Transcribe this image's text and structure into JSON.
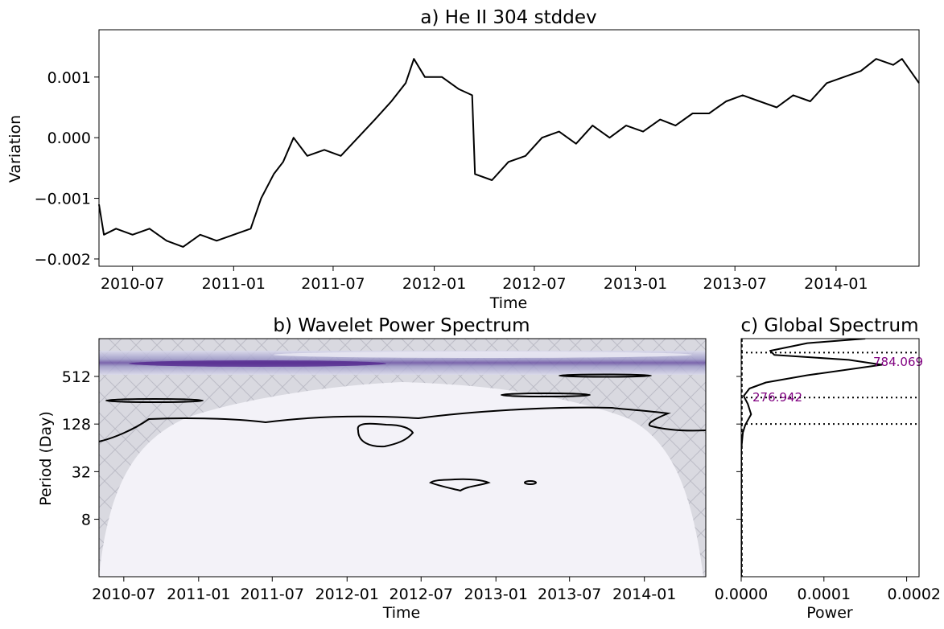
{
  "chart_data": [
    {
      "type": "line",
      "title": "a) He II 304 stddev",
      "xlabel": "Time",
      "ylabel": "Variation",
      "x_range": [
        "2010-05-01",
        "2014-06-01"
      ],
      "ylim": [
        -0.00212,
        0.00178
      ],
      "xticks": [
        "2010-07",
        "2011-01",
        "2011-07",
        "2012-01",
        "2012-07",
        "2013-01",
        "2013-07",
        "2014-01"
      ],
      "yticks": [
        {
          "value": 0.001,
          "label": "0.001"
        },
        {
          "value": 0.0,
          "label": "0.000"
        },
        {
          "value": -0.001,
          "label": "−0.001"
        },
        {
          "value": -0.002,
          "label": "−0.002"
        }
      ],
      "series_color": "#000000",
      "series": [
        {
          "values": [
            [
              "2010-05-01",
              -0.0011
            ],
            [
              "2010-05-10",
              -0.0016
            ],
            [
              "2010-06-01",
              -0.0015
            ],
            [
              "2010-07-01",
              -0.0016
            ],
            [
              "2010-08-01",
              -0.0015
            ],
            [
              "2010-09-01",
              -0.0017
            ],
            [
              "2010-10-01",
              -0.0018
            ],
            [
              "2010-11-01",
              -0.0016
            ],
            [
              "2010-12-01",
              -0.0017
            ],
            [
              "2011-01-01",
              -0.0016
            ],
            [
              "2011-02-01",
              -0.0015
            ],
            [
              "2011-02-20",
              -0.001
            ],
            [
              "2011-03-15",
              -0.0006
            ],
            [
              "2011-04-01",
              -0.0004
            ],
            [
              "2011-04-20",
              0.0
            ],
            [
              "2011-05-15",
              -0.0003
            ],
            [
              "2011-06-15",
              -0.0002
            ],
            [
              "2011-07-15",
              -0.0003
            ],
            [
              "2011-08-15",
              0.0
            ],
            [
              "2011-09-15",
              0.0003
            ],
            [
              "2011-10-15",
              0.0006
            ],
            [
              "2011-11-10",
              0.0009
            ],
            [
              "2011-11-25",
              0.0013
            ],
            [
              "2011-12-15",
              0.001
            ],
            [
              "2012-01-15",
              0.001
            ],
            [
              "2012-02-15",
              0.0008
            ],
            [
              "2012-03-10",
              0.0007
            ],
            [
              "2012-03-15",
              -0.0006
            ],
            [
              "2012-04-15",
              -0.0007
            ],
            [
              "2012-05-15",
              -0.0004
            ],
            [
              "2012-06-15",
              -0.0003
            ],
            [
              "2012-07-15",
              0.0
            ],
            [
              "2012-08-15",
              0.0001
            ],
            [
              "2012-09-15",
              -0.0001
            ],
            [
              "2012-10-15",
              0.0002
            ],
            [
              "2012-11-15",
              0.0
            ],
            [
              "2012-12-15",
              0.0002
            ],
            [
              "2013-01-15",
              0.0001
            ],
            [
              "2013-02-15",
              0.0003
            ],
            [
              "2013-03-15",
              0.0002
            ],
            [
              "2013-04-15",
              0.0004
            ],
            [
              "2013-05-15",
              0.0004
            ],
            [
              "2013-06-15",
              0.0006
            ],
            [
              "2013-07-15",
              0.0007
            ],
            [
              "2013-08-15",
              0.0006
            ],
            [
              "2013-09-15",
              0.0005
            ],
            [
              "2013-10-15",
              0.0007
            ],
            [
              "2013-11-15",
              0.0006
            ],
            [
              "2013-12-15",
              0.0009
            ],
            [
              "2014-01-15",
              0.001
            ],
            [
              "2014-02-15",
              0.0011
            ],
            [
              "2014-03-15",
              0.0013
            ],
            [
              "2014-04-15",
              0.0012
            ],
            [
              "2014-05-01",
              0.0013
            ],
            [
              "2014-06-01",
              0.0009
            ]
          ]
        }
      ]
    },
    {
      "type": "heatmap",
      "title": "b) Wavelet Power Spectrum",
      "xlabel": "Time",
      "ylabel": "Period (Day)",
      "x_range": [
        "2010-05-01",
        "2014-06-01"
      ],
      "period_range_days": [
        1.5,
        1540
      ],
      "y_scale": "log2",
      "xticks": [
        "2010-07",
        "2011-01",
        "2011-07",
        "2012-01",
        "2012-07",
        "2013-01",
        "2013-07",
        "2014-01"
      ],
      "yticks": [
        512,
        128,
        32,
        8
      ],
      "colormap": "Purples",
      "cone_of_influence_color": "#d8d8df",
      "band_peak_period_days": 784
    },
    {
      "type": "line",
      "title": "c) Global Spectrum",
      "xlabel": "Power",
      "xlim": [
        0,
        0.000215
      ],
      "xticks": [
        {
          "value": 0,
          "label": "0.0000"
        },
        {
          "value": 0.0001,
          "label": "0.0001"
        },
        {
          "value": 0.0002,
          "label": "0.0002"
        }
      ],
      "reference_lines_days": [
        1024,
        276.942,
        128
      ],
      "peak_labels": [
        {
          "period": 784.069,
          "label": "784.069"
        },
        {
          "period": 276.942,
          "label": "276.942"
        }
      ],
      "annotation_color": "#800080",
      "series": [
        {
          "values": [
            [
              0.0,
              1.5
            ],
            [
              0.0,
              60
            ],
            [
              2e-06,
              100
            ],
            [
              5e-06,
              125
            ],
            [
              1.2e-05,
              170
            ],
            [
              8e-06,
              230
            ],
            [
              3e-06,
              290
            ],
            [
              1e-05,
              360
            ],
            [
              3e-05,
              430
            ],
            [
              8e-05,
              530
            ],
            [
              0.00017,
              720
            ],
            [
              0.00013,
              830
            ],
            [
              4e-05,
              960
            ],
            [
              3.5e-05,
              1080
            ],
            [
              8e-05,
              1350
            ],
            [
              0.00015,
              1540
            ]
          ]
        }
      ]
    }
  ]
}
